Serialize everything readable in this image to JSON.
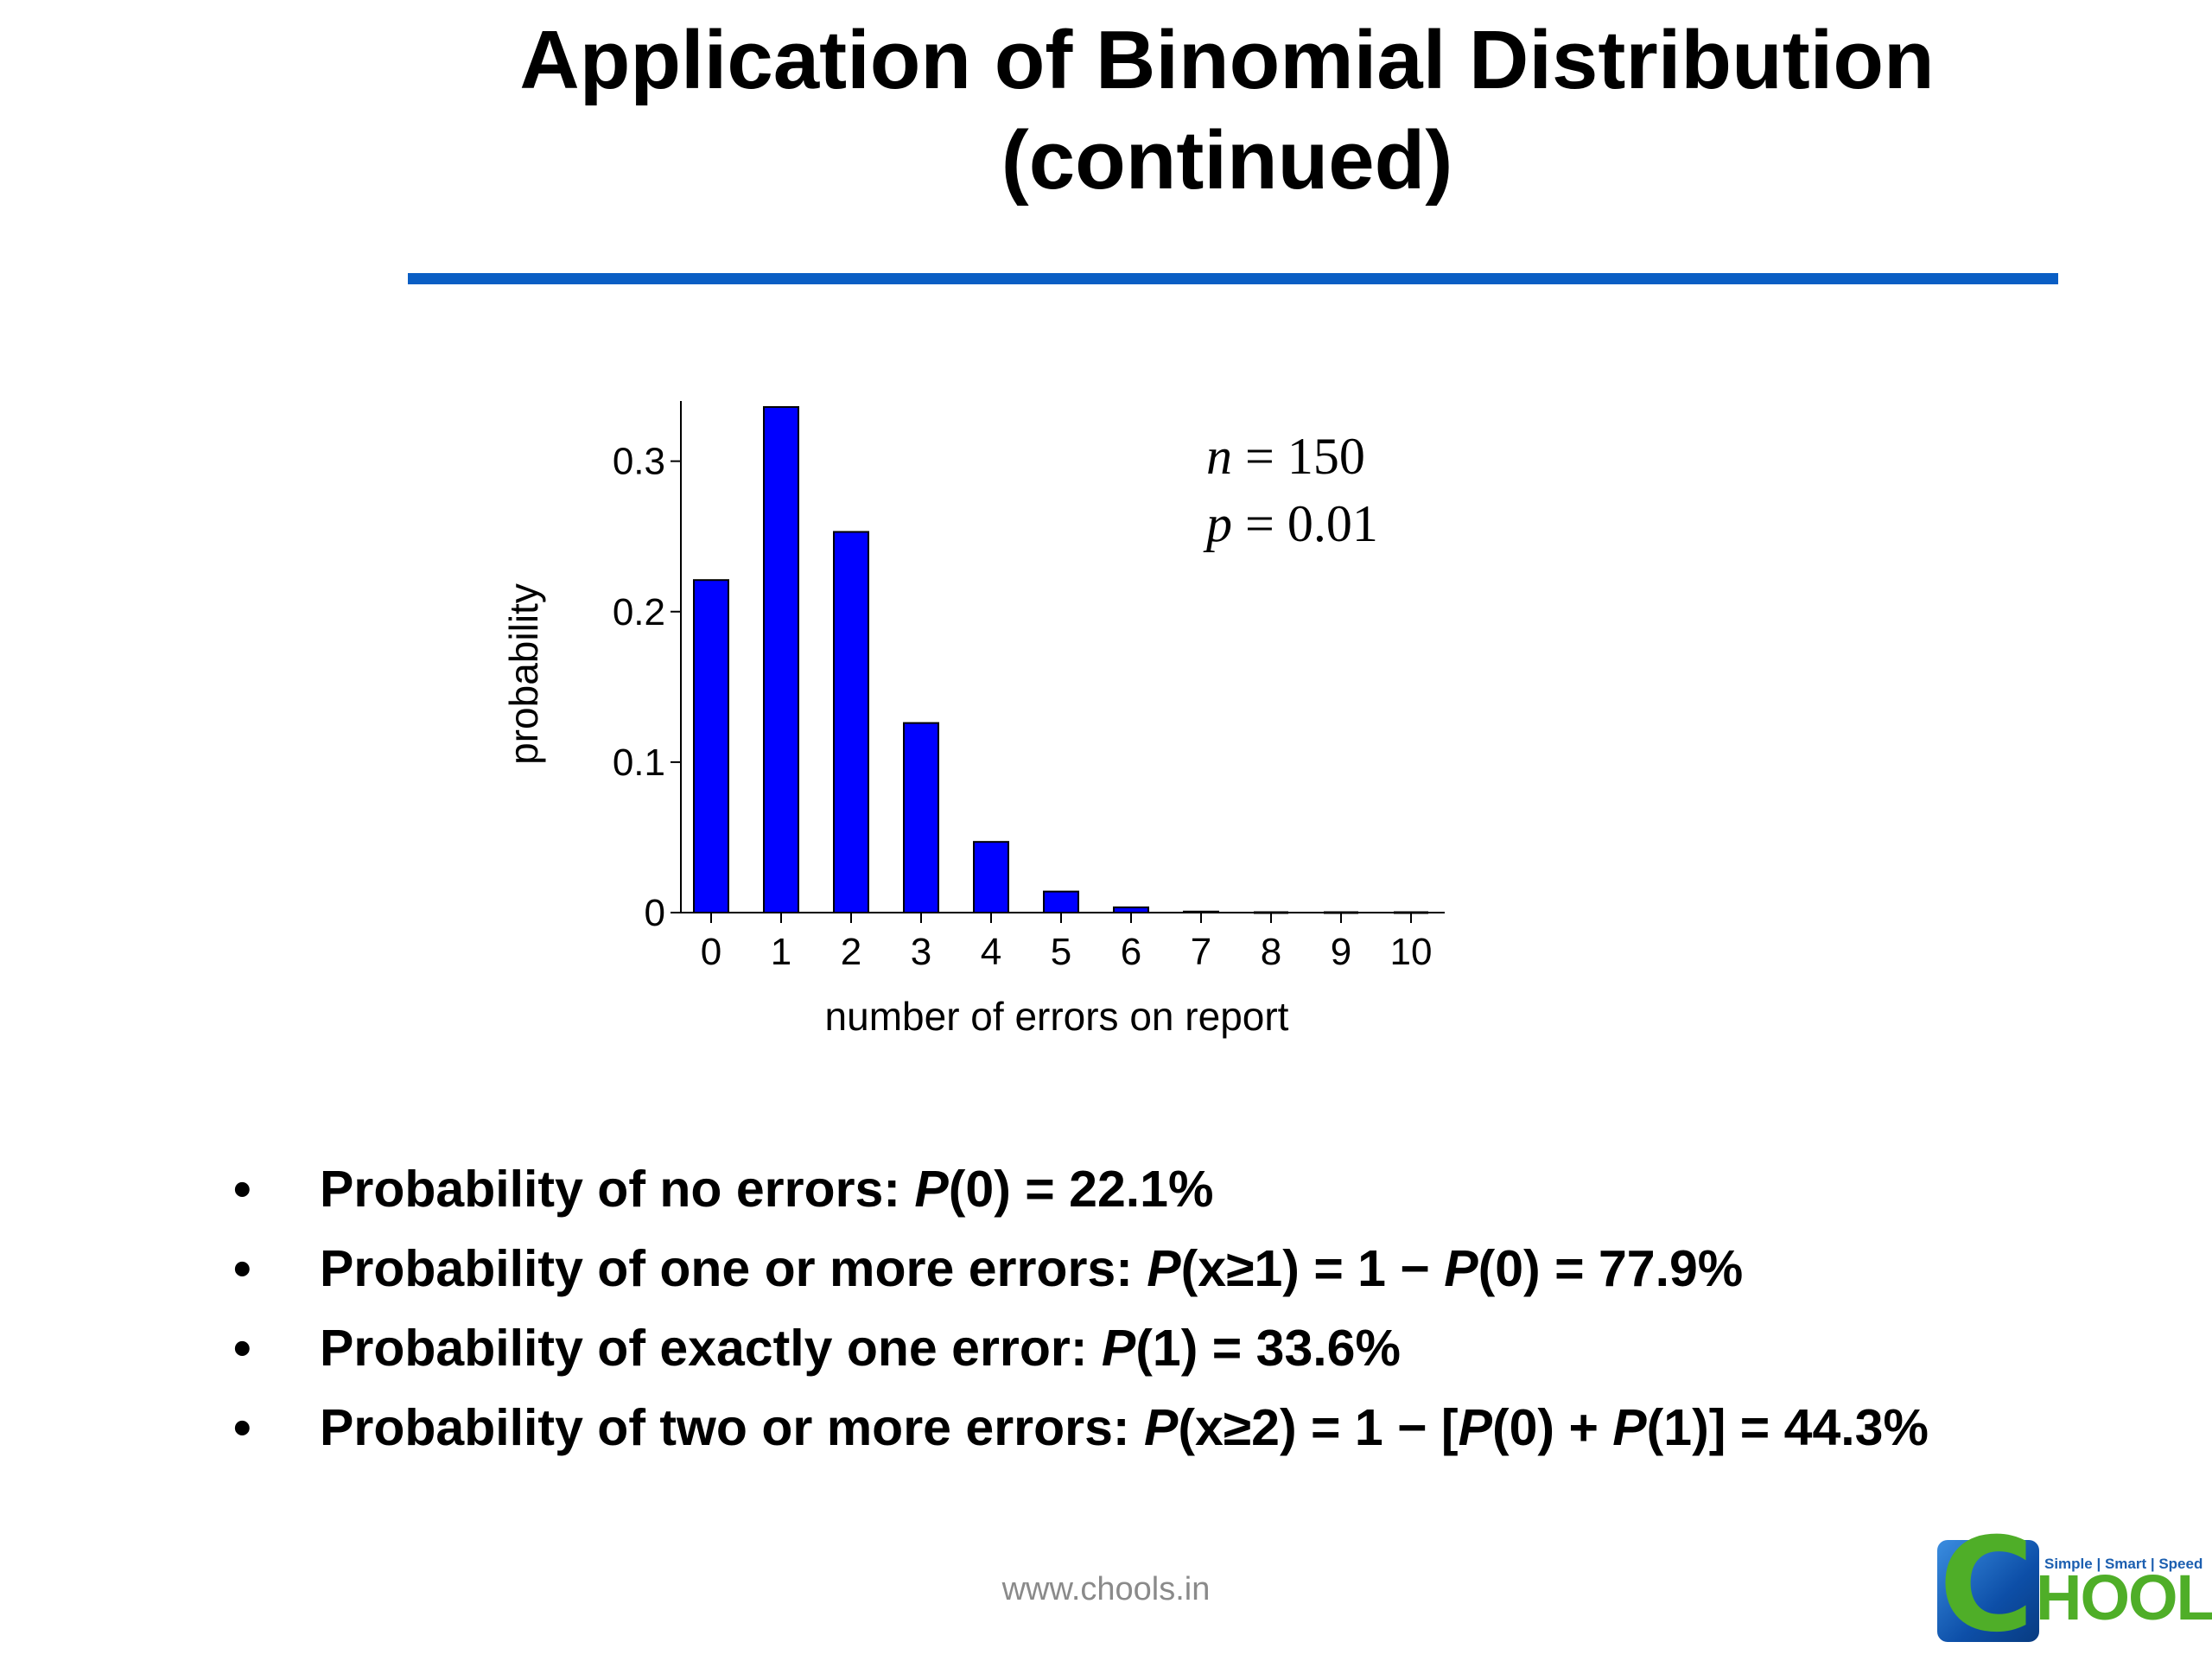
{
  "slide": {
    "title_line1": "Application of Binomial Distribution",
    "title_line2": "(continued)",
    "accent_color": "#0a5ec4"
  },
  "chart_data": {
    "type": "bar",
    "categories": [
      "0",
      "1",
      "2",
      "3",
      "4",
      "5",
      "6",
      "7",
      "8",
      "9",
      "10"
    ],
    "values": [
      0.221,
      0.336,
      0.253,
      0.126,
      0.047,
      0.014,
      0.0035,
      0.0007,
      0.0001,
      1e-05,
      1e-06
    ],
    "xlabel": "number of errors on report",
    "ylabel": "probability",
    "ylim": [
      0,
      0.34
    ],
    "yticks": [
      0,
      0.1,
      0.2,
      0.3
    ],
    "ytick_labels": [
      "0",
      "0.1",
      "0.2",
      "0.3"
    ],
    "bar_color": "#0000ff",
    "grid": false,
    "annotation": {
      "line1_var": "n",
      "line1_val": " = 150",
      "line2_var": "p",
      "line2_val": " = 0.01"
    }
  },
  "bullets": [
    {
      "text": "Probability of no errors:  ",
      "formula": [
        {
          "t": "P",
          "i": true
        },
        {
          "t": "(0) = 22.1%"
        }
      ]
    },
    {
      "text": "Probability of one or more errors:  ",
      "formula": [
        {
          "t": "P",
          "i": true
        },
        {
          "t": "(x≥1) = 1 − "
        },
        {
          "t": "P",
          "i": true
        },
        {
          "t": "(0) = 77.9%"
        }
      ]
    },
    {
      "text": "Probability of exactly one error:  ",
      "formula": [
        {
          "t": "P",
          "i": true
        },
        {
          "t": "(1) = 33.6%"
        }
      ]
    },
    {
      "text": "Probability of two or more errors: ",
      "formula": [
        {
          "t": "P",
          "i": true
        },
        {
          "t": "(x≥2) = 1 − ["
        },
        {
          "t": "P",
          "i": true
        },
        {
          "t": "(0) + "
        },
        {
          "t": "P",
          "i": true
        },
        {
          "t": "(1)] = 44.3%"
        }
      ]
    }
  ],
  "bullet_symbol": "•",
  "footer": {
    "url": "www.chools.in"
  },
  "logo": {
    "tagline": "Simple | Smart | Speed",
    "letter": "C",
    "word": "HOOLS"
  }
}
